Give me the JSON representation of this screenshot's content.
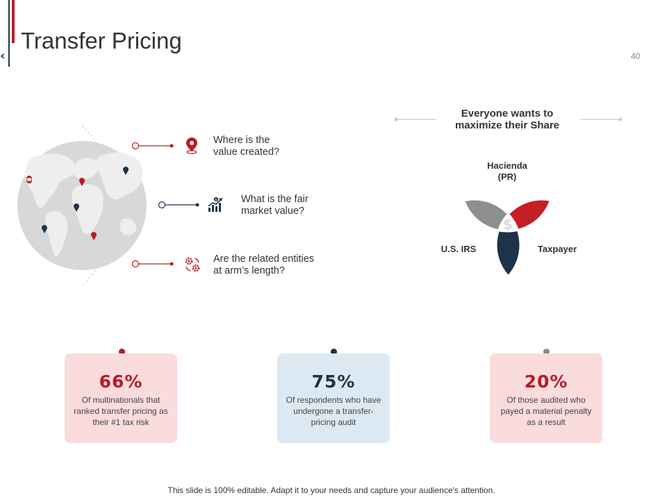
{
  "slide": {
    "title": "Transfer Pricing",
    "page_number": "40",
    "back_icon_glyph": "‹"
  },
  "questions": [
    {
      "icon": "location-pin-icon",
      "text": "Where is the\nvalue created?"
    },
    {
      "icon": "growth-chart-dollar-icon",
      "text": "What is the fair\nmarket value?"
    },
    {
      "icon": "gears-cycle-icon",
      "text": "Are the related entities\nat arm’s length?"
    }
  ],
  "venn": {
    "title": "Everyone wants to\nmaximize their Share",
    "circles": [
      {
        "label": "Hacienda\n(PR)",
        "color": "#b71c24"
      },
      {
        "label": "U.S. IRS",
        "color": "#9e9e9e"
      },
      {
        "label": "Taxpayer",
        "color": "#1d3349"
      }
    ],
    "center_icon": "dollar-icon"
  },
  "stats": [
    {
      "value": "66%",
      "description": "Of multinationals that ranked transfer pricing as their #1 tax risk",
      "value_color": "#b71c24",
      "card_color": "#fadcdd",
      "dot_color": "#b71c24"
    },
    {
      "value": "75%",
      "description": "Of respondents who have undergone a transfer-pricing audit",
      "value_color": "#1d3349",
      "card_color": "#dde9f2",
      "dot_color": "#1d3349"
    },
    {
      "value": "20%",
      "description": "Of those audited who payed a material penalty as a result",
      "value_color": "#b71c24",
      "card_color": "#fadcdd",
      "dot_color": "#888888"
    }
  ],
  "footer": "This slide is 100% editable. Adapt it to your needs and capture your audience's attention.",
  "colors": {
    "red": "#b71c24",
    "navy": "#1d3349",
    "gray": "#9e9e9e"
  }
}
